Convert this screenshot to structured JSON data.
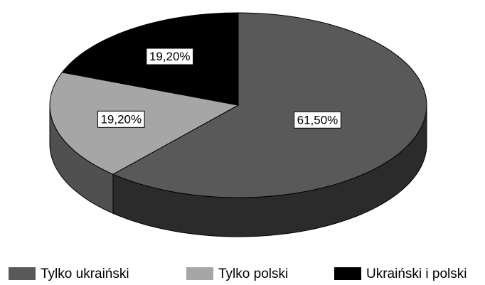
{
  "chart_data": {
    "type": "pie",
    "categories": [
      "Tylko ukraiński",
      "Tylko polski",
      "Ukraiński i polski"
    ],
    "values": [
      61.5,
      19.2,
      19.2
    ],
    "value_labels": [
      "61,50%",
      "19,20%",
      "19,20%"
    ],
    "colors": [
      "#595959",
      "#a6a6a6",
      "#000000"
    ],
    "legend": "bottom"
  }
}
